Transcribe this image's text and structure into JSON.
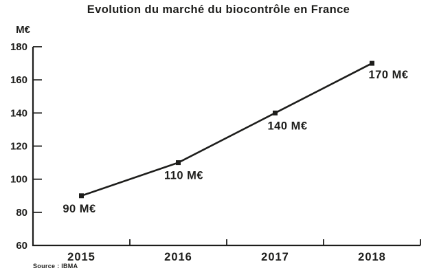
{
  "chart_data": {
    "type": "line",
    "title": "Evolution du marché du biocontrôle en France",
    "unit_label": "M€",
    "categories": [
      "2015",
      "2016",
      "2017",
      "2018"
    ],
    "values": [
      90,
      110,
      140,
      170
    ],
    "point_labels": [
      "90 M€",
      "110 M€",
      "140 M€",
      "170 M€"
    ],
    "yticks": [
      60,
      80,
      100,
      120,
      140,
      160,
      180
    ],
    "ylim": [
      60,
      180
    ],
    "xlabel": "",
    "ylabel": "M€",
    "grid": false,
    "legend": "none",
    "source": "Source : IBMA",
    "line_color": "#1d1d1b",
    "background_color": "#ffffff"
  }
}
